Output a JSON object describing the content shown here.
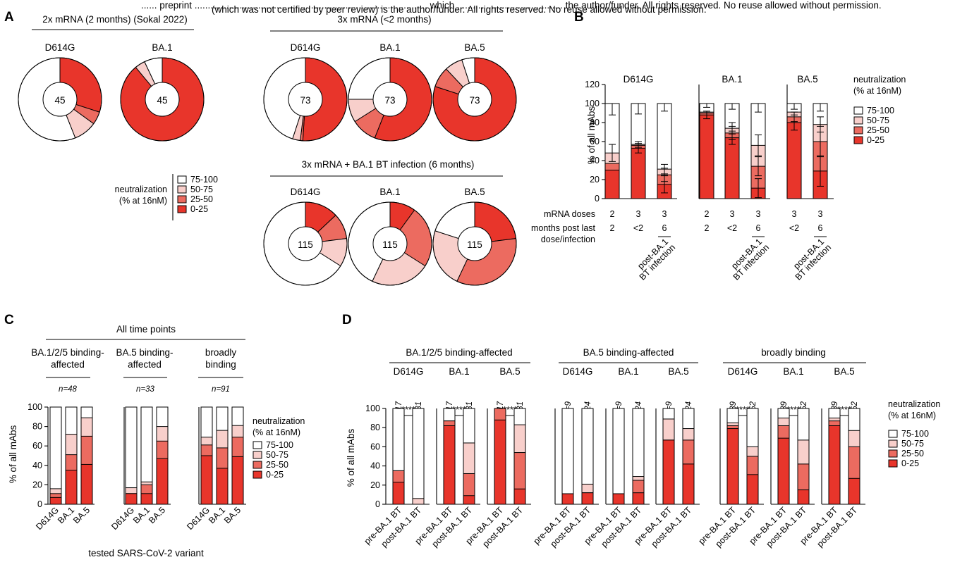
{
  "banner": {
    "line1": "...... preprint ........................................................................................ which ........................................ the author/funder. All rights reserved. No reuse allowed without permission.",
    "line2": "(which was not certified by peer review) is the author/funder. All rights reserved. No reuse allowed without permission."
  },
  "colors": {
    "n75_100": "#ffffff",
    "n50_75": "#f8cfcb",
    "n25_50": "#ec6b60",
    "n0_25": "#e8352b"
  },
  "legend": {
    "title1": "neutralization",
    "title2": "(% at 16nM)",
    "items": [
      "75-100",
      "50-75",
      "25-50",
      "0-25"
    ]
  },
  "panelA": {
    "label": "A",
    "groups": [
      {
        "title": "2x mRNA (2 months) (Sokal 2022)",
        "variants": [
          "D614G",
          "BA.1"
        ]
      },
      {
        "title": "3x mRNA (<2 months)",
        "variants": [
          "D614G",
          "BA.1",
          "BA.5"
        ]
      },
      {
        "title": "3x mRNA + BA.1 BT infection (6 months)",
        "variants": [
          "D614G",
          "BA.1",
          "BA.5"
        ]
      }
    ],
    "counts": [
      "45",
      "45",
      "73",
      "73",
      "73",
      "115",
      "115",
      "115"
    ]
  },
  "panelB": {
    "label": "B",
    "ylabel": "% of all mAbs",
    "yticks": [
      "0",
      "20",
      "40",
      "60",
      "80",
      "100",
      "120"
    ],
    "variants": [
      "D614G",
      "BA.1",
      "BA.5"
    ],
    "row1_label": "mRNA doses",
    "row2_label1": "months post last",
    "row2_label2": "dose/infection",
    "doses": [
      [
        "2",
        "3",
        "3"
      ],
      [
        "2",
        "3",
        "3"
      ],
      [
        "3",
        "3"
      ]
    ],
    "months": [
      [
        "2",
        "<2",
        "6"
      ],
      [
        "2",
        "<2",
        "6"
      ],
      [
        "<2",
        "6"
      ]
    ],
    "bt1": "post-BA.1",
    "bt2": "BT infection"
  },
  "panelC": {
    "label": "C",
    "title": "All time points",
    "ylabel": "% of all mAbs",
    "xlabel": "tested SARS-CoV-2 variant",
    "yticks": [
      "0",
      "20",
      "40",
      "60",
      "80",
      "100"
    ],
    "groups": [
      {
        "title1": "BA.1/2/5 binding-",
        "title2": "affected",
        "n": "n=48"
      },
      {
        "title1": "BA.5 binding-",
        "title2": "affected",
        "n": "n=33"
      },
      {
        "title1": "broadly",
        "title2": "binding",
        "n": "n=91"
      }
    ],
    "tick_labels": [
      "D614G",
      "BA.1",
      "BA.5"
    ]
  },
  "panelD": {
    "label": "D",
    "ylabel": "% of all mAbs",
    "yticks": [
      "0",
      "20",
      "40",
      "60",
      "80",
      "100"
    ],
    "groups": [
      {
        "title": "BA.1/2/5 binding-affected",
        "n": [
          "n=17",
          "n=31"
        ],
        "sig": "****"
      },
      {
        "title": "BA.5 binding-affected",
        "n": [
          "n=9",
          "n=24"
        ],
        "sig": ""
      },
      {
        "title": "broadly binding",
        "n": [
          "n=39",
          "n=52"
        ],
        "sig": "****"
      }
    ],
    "variants": [
      "D614G",
      "BA.1",
      "BA.5"
    ],
    "tick_labels": [
      "pre-BA.1 BT",
      "post-BA.1 BT"
    ]
  },
  "chart_data": [
    {
      "type": "pie",
      "panel": "A",
      "categories": [
        "75-100",
        "50-75",
        "25-50",
        "0-25"
      ],
      "series": [
        {
          "name": "2x mRNA D614G",
          "n": 45,
          "values": [
            56,
            9,
            5,
            30
          ]
        },
        {
          "name": "2x mRNA BA.1",
          "n": 45,
          "values": [
            7,
            4,
            0,
            89
          ]
        },
        {
          "name": "3x mRNA D614G",
          "n": 73,
          "values": [
            45,
            3,
            1,
            51
          ]
        },
        {
          "name": "3x mRNA BA.1",
          "n": 73,
          "values": [
            25,
            9,
            10,
            56
          ]
        },
        {
          "name": "3x mRNA BA.5",
          "n": 73,
          "values": [
            5,
            7,
            8,
            80
          ]
        },
        {
          "name": "3x mRNA + BA.1 BT D614G",
          "n": 115,
          "values": [
            66,
            11,
            10,
            13
          ]
        },
        {
          "name": "3x mRNA + BA.1 BT BA.1",
          "n": 115,
          "values": [
            43,
            23,
            24,
            10
          ]
        },
        {
          "name": "3x mRNA + BA.1 BT BA.5",
          "n": 115,
          "values": [
            20,
            23,
            34,
            23
          ]
        }
      ]
    },
    {
      "type": "bar",
      "panel": "B",
      "stacked": true,
      "error_bars": true,
      "ylabel": "% of all mAbs",
      "ylim": [
        0,
        120
      ],
      "groups": [
        {
          "variant": "D614G",
          "bars": [
            {
              "thr": [
                30,
                37,
                48,
                100
              ],
              "err": [
                [
                  0,
                  0
                ],
                [
                  0,
                  0
                ],
                [
                  9,
                  9
                ],
                [
                  12,
                  0
                ]
              ]
            },
            {
              "thr": [
                53,
                56,
                57,
                100
              ],
              "err": [
                [
                  5,
                  5
                ],
                [
                  0,
                  0
                ],
                [
                  3,
                  3
                ],
                [
                  11,
                  0
                ]
              ]
            },
            {
              "thr": [
                15,
                25,
                31,
                100
              ],
              "err": [
                [
                  9,
                  9
                ],
                [
                  7,
                  7
                ],
                [
                  5,
                  5
                ],
                [
                  8,
                  0
                ]
              ]
            }
          ]
        },
        {
          "variant": "BA.1",
          "bars": [
            {
              "thr": [
                88,
                90,
                91,
                100
              ],
              "err": [
                [
                  4,
                  4
                ],
                [
                  0,
                  0
                ],
                [
                  0,
                  0
                ],
                [
                  4,
                  0
                ]
              ]
            },
            {
              "thr": [
                64,
                69,
                74,
                100
              ],
              "err": [
                [
                  7,
                  7
                ],
                [
                  7,
                  7
                ],
                [
                  6,
                  6
                ],
                [
                  6,
                  0
                ]
              ]
            },
            {
              "thr": [
                11,
                34,
                56,
                100
              ],
              "err": [
                [
                  10,
                  10
                ],
                [
                  10,
                  10
                ],
                [
                  11,
                  11
                ],
                [
                  9,
                  0
                ]
              ]
            }
          ]
        },
        {
          "variant": "BA.5",
          "bars": [
            {
              "thr": [
                80,
                86,
                91,
                100
              ],
              "err": [
                [
                  8,
                  8
                ],
                [
                  5,
                  5
                ],
                [
                  0,
                  0
                ],
                [
                  6,
                  0
                ]
              ]
            },
            {
              "thr": [
                29,
                60,
                78,
                100
              ],
              "err": [
                [
                  16,
                  16
                ],
                [
                  16,
                  16
                ],
                [
                  8,
                  8
                ],
                [
                  8,
                  0
                ]
              ]
            }
          ]
        }
      ]
    },
    {
      "type": "bar",
      "panel": "C",
      "stacked": true,
      "ylabel": "% of all mAbs",
      "xlabel": "tested SARS-CoV-2 variant",
      "ylim": [
        0,
        100
      ],
      "groups": [
        {
          "n": "n=48",
          "bars": [
            [
              7,
              11,
              16,
              100
            ],
            [
              35,
              51,
              72,
              100
            ],
            [
              41,
              70,
              89,
              100
            ]
          ]
        },
        {
          "n": "n=33",
          "bars": [
            [
              11,
              11,
              17,
              100
            ],
            [
              11,
              20,
              23,
              100
            ],
            [
              47,
              65,
              80,
              100
            ]
          ]
        },
        {
          "n": "n=91",
          "bars": [
            [
              50,
              61,
              69,
              100
            ],
            [
              37,
              58,
              76,
              100
            ],
            [
              49,
              69,
              81,
              100
            ]
          ]
        }
      ]
    },
    {
      "type": "bar",
      "panel": "D",
      "stacked": true,
      "ylabel": "% of all mAbs",
      "ylim": [
        0,
        100
      ],
      "groups": [
        {
          "bars": [
            [
              [
                23,
                35,
                35,
                100
              ],
              [
                0,
                0,
                6,
                100
              ]
            ],
            [
              [
                82,
                87,
                87,
                100
              ],
              [
                9,
                32,
                64,
                100
              ]
            ],
            [
              [
                88,
                100,
                100,
                100
              ],
              [
                16,
                54,
                83,
                100
              ]
            ]
          ]
        },
        {
          "bars": [
            [
              [
                11,
                11,
                11,
                100
              ],
              [
                12,
                12,
                21,
                100
              ]
            ],
            [
              [
                11,
                11,
                11,
                100
              ],
              [
                12,
                25,
                29,
                100
              ]
            ],
            [
              [
                67,
                67,
                89,
                100
              ],
              [
                42,
                67,
                79,
                100
              ]
            ]
          ]
        },
        {
          "bars": [
            [
              [
                79,
                82,
                85,
                100
              ],
              [
                31,
                50,
                60,
                100
              ]
            ],
            [
              [
                69,
                82,
                90,
                100
              ],
              [
                15,
                42,
                67,
                100
              ]
            ],
            [
              [
                82,
                87,
                90,
                100
              ],
              [
                27,
                60,
                77,
                100
              ]
            ]
          ]
        }
      ]
    }
  ]
}
